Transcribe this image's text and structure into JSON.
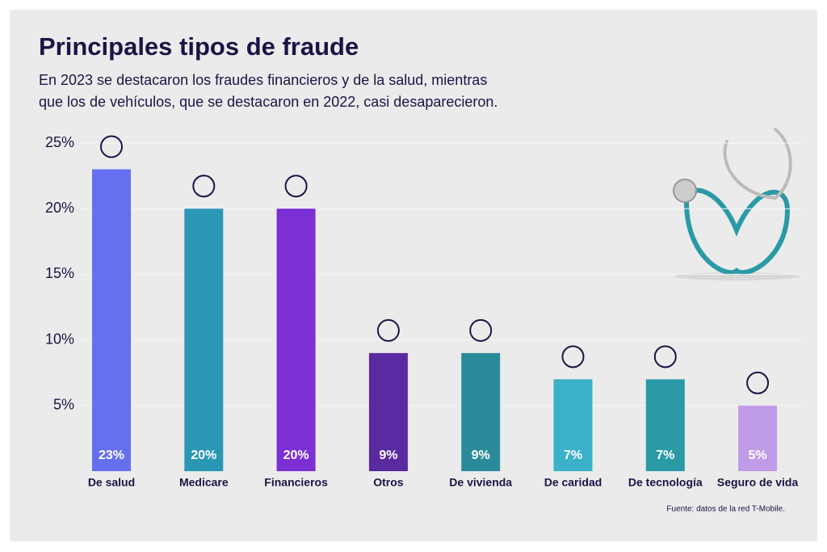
{
  "chart_data": {
    "type": "bar",
    "title": "Principales tipos de fraude",
    "subtitle": [
      "En 2023 se destacaron los fraudes financieros y de la salud, mientras",
      "que los de vehículos, que se destacaron en 2022, casi desaparecieron."
    ],
    "categories": [
      "De salud",
      "Medicare",
      "Financieros",
      "Otros",
      "De vivienda",
      "De caridad",
      "De tecnología",
      "Seguro de vida"
    ],
    "values": [
      23,
      20,
      20,
      9,
      9,
      7,
      7,
      5
    ],
    "value_labels": [
      "23%",
      "20%",
      "20%",
      "9%",
      "9%",
      "7%",
      "7%",
      "5%"
    ],
    "colors": [
      "#6470f0",
      "#2a97b5",
      "#7b2fd4",
      "#5a2aa0",
      "#2b8a99",
      "#3ab0c9",
      "#2a9aa6",
      "#c09be8"
    ],
    "ylim": [
      0,
      25
    ],
    "yticks": [
      {
        "value": 5,
        "label": "5%"
      },
      {
        "value": 10,
        "label": "10%"
      },
      {
        "value": 15,
        "label": "15%"
      },
      {
        "value": 20,
        "label": "20%"
      },
      {
        "value": 25,
        "label": "25%"
      }
    ],
    "grid": true,
    "source": "Fuente: datos de la red T-Mobile."
  }
}
